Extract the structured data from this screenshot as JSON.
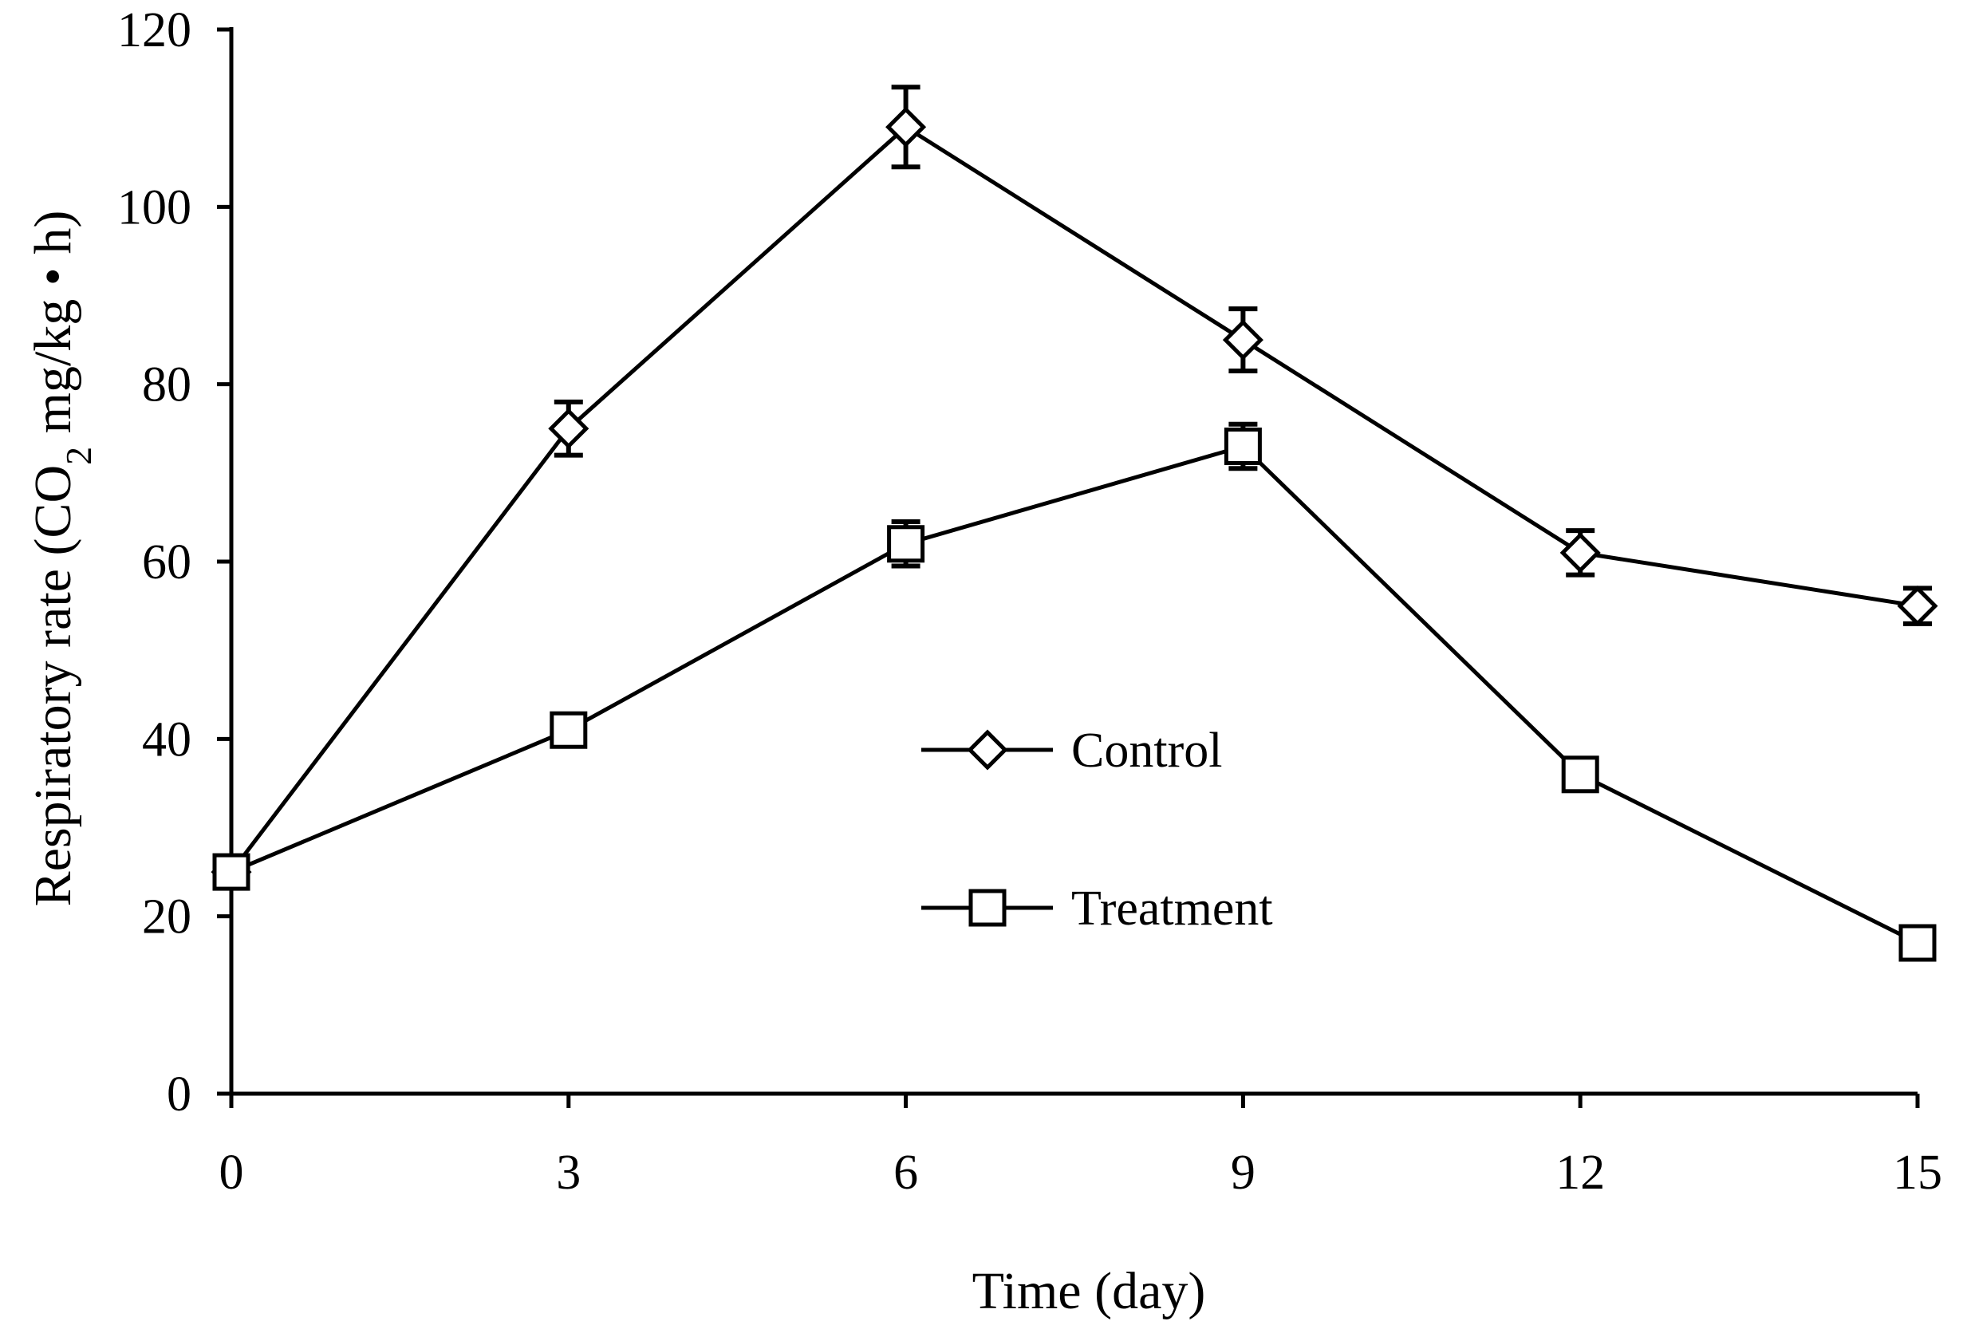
{
  "chart_data": {
    "type": "line",
    "title": "",
    "xlabel": "Time (day)",
    "ylabel": {
      "main": "Respiratory rate (CO",
      "subscript": "2",
      "suffix": " mg/kg • h)"
    },
    "x": [
      0,
      3,
      6,
      9,
      12,
      15
    ],
    "xlim": [
      0,
      15
    ],
    "ylim": [
      0,
      120
    ],
    "x_ticks": [
      "0",
      "3",
      "6",
      "9",
      "12",
      "15"
    ],
    "y_ticks": [
      "0",
      "20",
      "40",
      "60",
      "80",
      "100",
      "120"
    ],
    "grid": false,
    "legend_position": "center",
    "series": [
      {
        "name": "Control",
        "marker": "diamond",
        "values": [
          25,
          75,
          109,
          85,
          61,
          55
        ],
        "errors": [
          0,
          3,
          4.5,
          3.5,
          2.5,
          2
        ]
      },
      {
        "name": "Treatment",
        "marker": "square",
        "values": [
          25,
          41,
          62,
          73,
          36,
          17
        ],
        "errors": [
          0,
          0,
          2.5,
          2.5,
          0,
          0
        ]
      }
    ]
  }
}
